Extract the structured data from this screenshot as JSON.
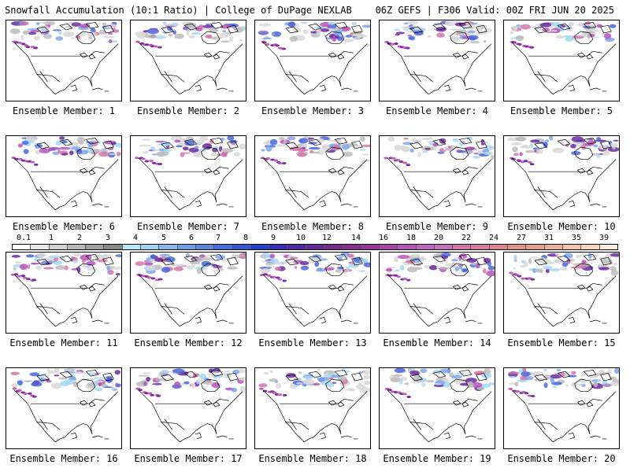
{
  "header": {
    "left": "Snowfall Accumulation (10:1 Ratio) | College of DuPage NEXLAB",
    "right": "06Z GEFS | F306 Valid: 00Z FRI JUN 20 2025"
  },
  "members": [
    {
      "label": "Ensemble Member: 1"
    },
    {
      "label": "Ensemble Member: 2"
    },
    {
      "label": "Ensemble Member: 3"
    },
    {
      "label": "Ensemble Member: 4"
    },
    {
      "label": "Ensemble Member: 5"
    },
    {
      "label": "Ensemble Member: 6"
    },
    {
      "label": "Ensemble Member: 7"
    },
    {
      "label": "Ensemble Member: 8"
    },
    {
      "label": "Ensemble Member: 9"
    },
    {
      "label": "Ensemble Member: 10"
    },
    {
      "label": "Ensemble Member: 11"
    },
    {
      "label": "Ensemble Member: 12"
    },
    {
      "label": "Ensemble Member: 13"
    },
    {
      "label": "Ensemble Member: 14"
    },
    {
      "label": "Ensemble Member: 15"
    },
    {
      "label": "Ensemble Member: 16"
    },
    {
      "label": "Ensemble Member: 17"
    },
    {
      "label": "Ensemble Member: 18"
    },
    {
      "label": "Ensemble Member: 19"
    },
    {
      "label": "Ensemble Member: 20"
    }
  ],
  "colorbar": {
    "ticks": [
      "0.1",
      "1",
      "2",
      "3",
      "4",
      "5",
      "6",
      "7",
      "8",
      "9",
      "10",
      "12",
      "14",
      "16",
      "18",
      "20",
      "22",
      "24",
      "27",
      "31",
      "35",
      "39"
    ],
    "colors": [
      "#ffffff",
      "#e8e8e8",
      "#d2d2d2",
      "#b9b9b9",
      "#a0a0a0",
      "#878787",
      "#b8e6f4",
      "#a2d3f2",
      "#8ab8ee",
      "#6f9ee8",
      "#5a86e2",
      "#4570dc",
      "#3258d6",
      "#2440cc",
      "#3a2ab8",
      "#4e2aa6",
      "#63299a",
      "#77298f",
      "#8a2c93",
      "#9b36a0",
      "#a944ad",
      "#b654b8",
      "#c066c2",
      "#c96fb8",
      "#d276aa",
      "#d77c9c",
      "#dc8490",
      "#e1908a",
      "#e89e8c",
      "#eeb09a",
      "#f2c2ac",
      "#f6d6c2",
      "#faeadd"
    ]
  }
}
